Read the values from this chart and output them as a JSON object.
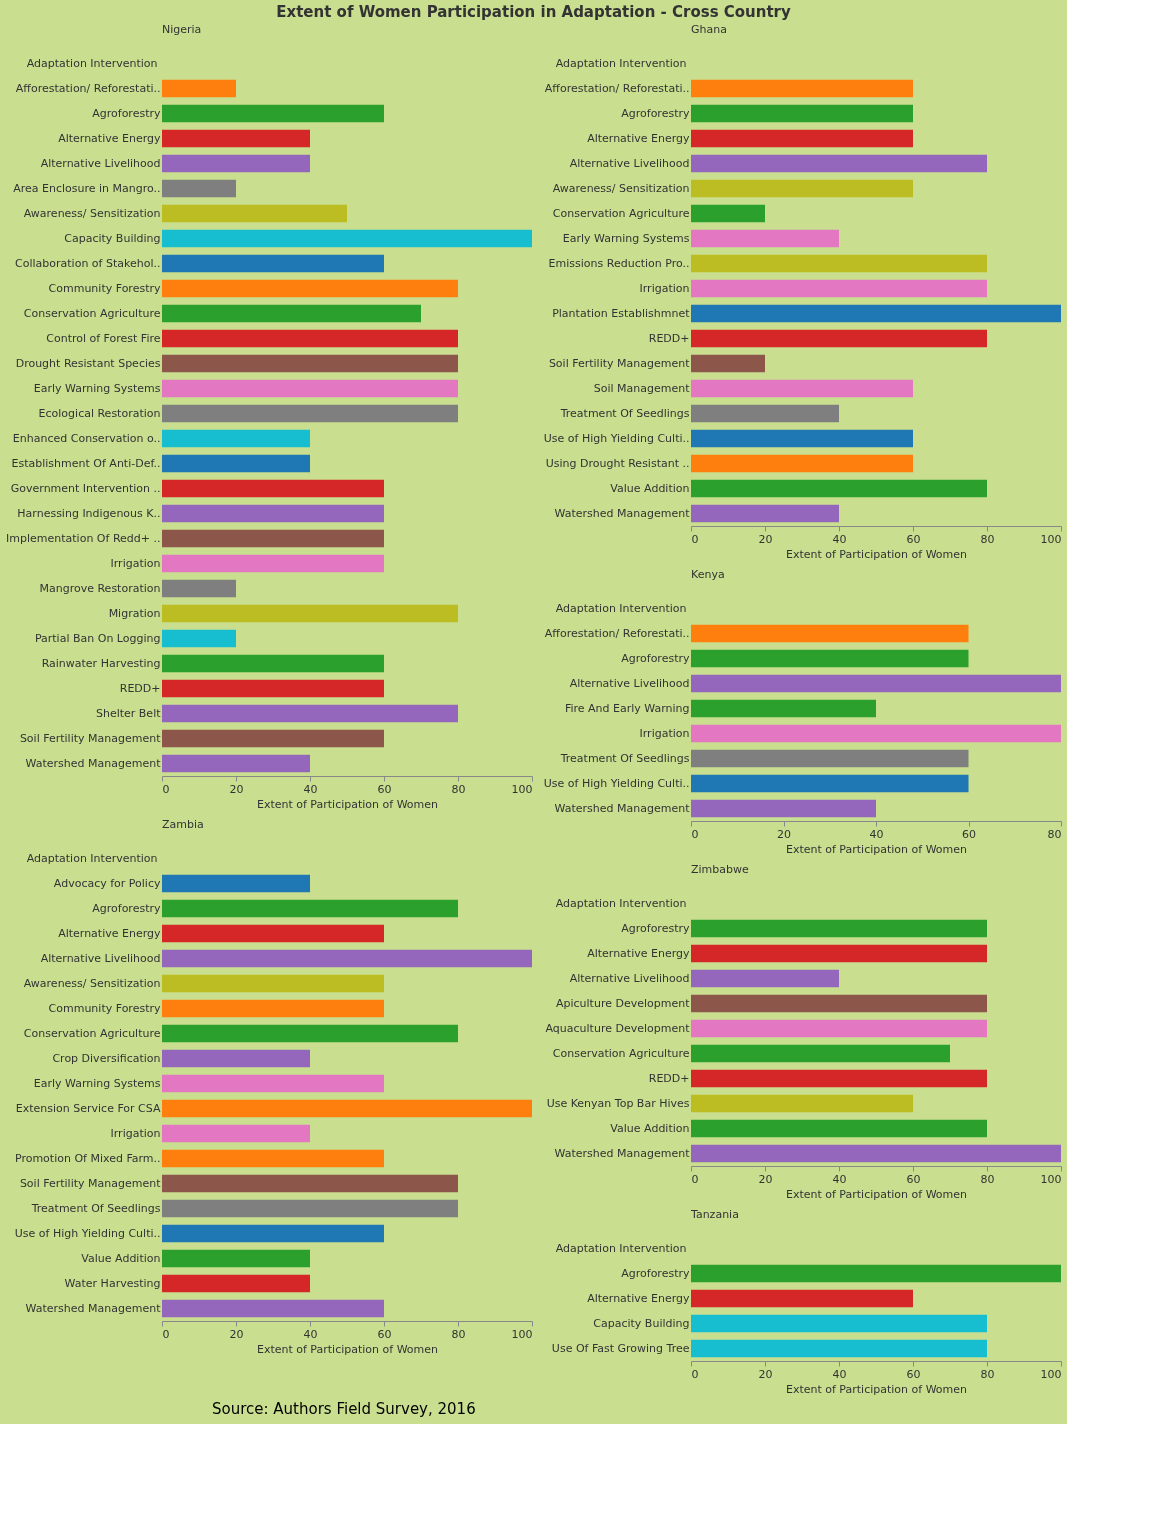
{
  "chart_data": [
    {
      "type": "bar",
      "orientation": "horizontal",
      "title": "Nigeria",
      "xlabel": "Extent of Participation of Women",
      "ylabel": "Adaptation Intervention",
      "xlim": [
        0,
        100
      ],
      "xticks": [
        0,
        20,
        40,
        60,
        80,
        100
      ],
      "annotations": [
        "Extent of Women Participation in Adaptation - Cross Country",
        "Source: Authors Field Survey, 2016"
      ],
      "categories": [
        "Afforestation/ Reforestati..",
        "Agroforestry",
        "Alternative Energy",
        "Alternative Livelihood",
        "Area Enclosure in Mangro..",
        "Awareness/ Sensitization",
        "Capacity Building",
        "Collaboration of Stakehol..",
        "Community Forestry",
        "Conservation Agriculture",
        "Control of Forest Fire",
        "Drought Resistant Species",
        "Early Warning Systems",
        "Ecological Restoration",
        "Enhanced Conservation o..",
        "Establishment Of Anti-Def..",
        "Government Intervention ..",
        "Harnessing Indigenous K..",
        "Implementation Of Redd+ ..",
        "Irrigation",
        "Mangrove Restoration",
        "Migration",
        "Partial Ban On Logging",
        "Rainwater Harvesting",
        "REDD+",
        "Shelter Belt",
        "Soil Fertility Management",
        "Watershed Management"
      ],
      "values": [
        20,
        60,
        40,
        40,
        20,
        50,
        100,
        60,
        80,
        70,
        80,
        80,
        80,
        80,
        40,
        40,
        60,
        60,
        60,
        60,
        20,
        80,
        20,
        60,
        60,
        80,
        60,
        40
      ],
      "colors": [
        "#ff7f0e",
        "#2ca02c",
        "#d62728",
        "#9467bd",
        "#7f7f7f",
        "#bcbd22",
        "#17becf",
        "#1f77b4",
        "#ff7f0e",
        "#2ca02c",
        "#d62728",
        "#8c564b",
        "#e377c2",
        "#7f7f7f",
        "#17becf",
        "#1f77b4",
        "#d62728",
        "#9467bd",
        "#8c564b",
        "#e377c2",
        "#7f7f7f",
        "#bcbd22",
        "#17becf",
        "#2ca02c",
        "#d62728",
        "#9467bd",
        "#8c564b",
        "#9467bd"
      ]
    },
    {
      "type": "bar",
      "orientation": "horizontal",
      "title": "Zambia",
      "xlabel": "Extent of Participation of Women",
      "ylabel": "Adaptation Intervention",
      "xlim": [
        0,
        100
      ],
      "xticks": [
        0,
        20,
        40,
        60,
        80,
        100
      ],
      "categories": [
        "Advocacy for Policy",
        "Agroforestry",
        "Alternative Energy",
        "Alternative Livelihood",
        "Awareness/ Sensitization",
        "Community Forestry",
        "Conservation Agriculture",
        "Crop Diversification",
        "Early Warning Systems",
        "Extension Service For CSA",
        "Irrigation",
        "Promotion Of Mixed Farm..",
        "Soil Fertility Management",
        "Treatment Of Seedlings",
        "Use of High Yielding Culti..",
        "Value Addition",
        "Water Harvesting",
        "Watershed Management"
      ],
      "values": [
        40,
        80,
        60,
        100,
        60,
        60,
        80,
        40,
        60,
        100,
        40,
        60,
        80,
        80,
        60,
        40,
        40,
        60
      ],
      "colors": [
        "#1f77b4",
        "#2ca02c",
        "#d62728",
        "#9467bd",
        "#bcbd22",
        "#ff7f0e",
        "#2ca02c",
        "#9467bd",
        "#e377c2",
        "#ff7f0e",
        "#e377c2",
        "#ff7f0e",
        "#8c564b",
        "#7f7f7f",
        "#1f77b4",
        "#2ca02c",
        "#d62728",
        "#9467bd"
      ]
    },
    {
      "type": "bar",
      "orientation": "horizontal",
      "title": "Ghana",
      "xlabel": "Extent of Participation of Women",
      "ylabel": "Adaptation Intervention",
      "xlim": [
        0,
        100
      ],
      "xticks": [
        0,
        20,
        40,
        60,
        80,
        100
      ],
      "categories": [
        "Afforestation/ Reforestati..",
        "Agroforestry",
        "Alternative Energy",
        "Alternative Livelihood",
        "Awareness/ Sensitization",
        "Conservation Agriculture",
        "Early Warning Systems",
        "Emissions Reduction Pro..",
        "Irrigation",
        "Plantation Establishmnet",
        "REDD+",
        "Soil Fertility Management",
        "Soil Management",
        "Treatment Of Seedlings",
        "Use of High Yielding Culti..",
        "Using Drought Resistant ..",
        "Value Addition",
        "Watershed Management"
      ],
      "values": [
        60,
        60,
        60,
        80,
        60,
        20,
        40,
        80,
        80,
        100,
        80,
        20,
        60,
        40,
        60,
        60,
        80,
        40
      ],
      "colors": [
        "#ff7f0e",
        "#2ca02c",
        "#d62728",
        "#9467bd",
        "#bcbd22",
        "#2ca02c",
        "#e377c2",
        "#bcbd22",
        "#e377c2",
        "#1f77b4",
        "#d62728",
        "#8c564b",
        "#e377c2",
        "#7f7f7f",
        "#1f77b4",
        "#ff7f0e",
        "#2ca02c",
        "#9467bd"
      ]
    },
    {
      "type": "bar",
      "orientation": "horizontal",
      "title": "Kenya",
      "xlabel": "Extent of Participation of Women",
      "ylabel": "Adaptation Intervention",
      "xlim": [
        0,
        80
      ],
      "xticks": [
        0,
        20,
        40,
        60,
        80
      ],
      "categories": [
        "Afforestation/ Reforestati..",
        "Agroforestry",
        "Alternative Livelihood",
        "Fire And Early Warning",
        "Irrigation",
        "Treatment Of Seedlings",
        "Use of High Yielding Culti..",
        "Watershed Management"
      ],
      "values": [
        60,
        60,
        80,
        40,
        80,
        60,
        60,
        40
      ],
      "colors": [
        "#ff7f0e",
        "#2ca02c",
        "#9467bd",
        "#2ca02c",
        "#e377c2",
        "#7f7f7f",
        "#1f77b4",
        "#9467bd"
      ]
    },
    {
      "type": "bar",
      "orientation": "horizontal",
      "title": "Zimbabwe",
      "xlabel": "Extent of Participation of Women",
      "ylabel": "Adaptation Intervention",
      "xlim": [
        0,
        100
      ],
      "xticks": [
        0,
        20,
        40,
        60,
        80,
        100
      ],
      "categories": [
        "Agroforestry",
        "Alternative Energy",
        "Alternative Livelihood",
        "Apiculture Development",
        "Aquaculture Development",
        "Conservation Agriculture",
        "REDD+",
        "Use Kenyan Top Bar Hives",
        "Value Addition",
        "Watershed Management"
      ],
      "values": [
        80,
        80,
        40,
        80,
        80,
        70,
        80,
        60,
        80,
        100
      ],
      "colors": [
        "#2ca02c",
        "#d62728",
        "#9467bd",
        "#8c564b",
        "#e377c2",
        "#2ca02c",
        "#d62728",
        "#bcbd22",
        "#2ca02c",
        "#9467bd"
      ]
    },
    {
      "type": "bar",
      "orientation": "horizontal",
      "title": "Tanzania",
      "xlabel": "Extent of Participation of Women",
      "ylabel": "Adaptation Intervention",
      "xlim": [
        0,
        100
      ],
      "xticks": [
        0,
        20,
        40,
        60,
        80,
        100
      ],
      "categories": [
        "Agroforestry",
        "Alternative Energy",
        "Capacity Building",
        "Use Of Fast Growing Tree"
      ],
      "values": [
        100,
        60,
        80,
        80
      ],
      "colors": [
        "#2ca02c",
        "#d62728",
        "#17becf",
        "#17becf"
      ]
    }
  ]
}
